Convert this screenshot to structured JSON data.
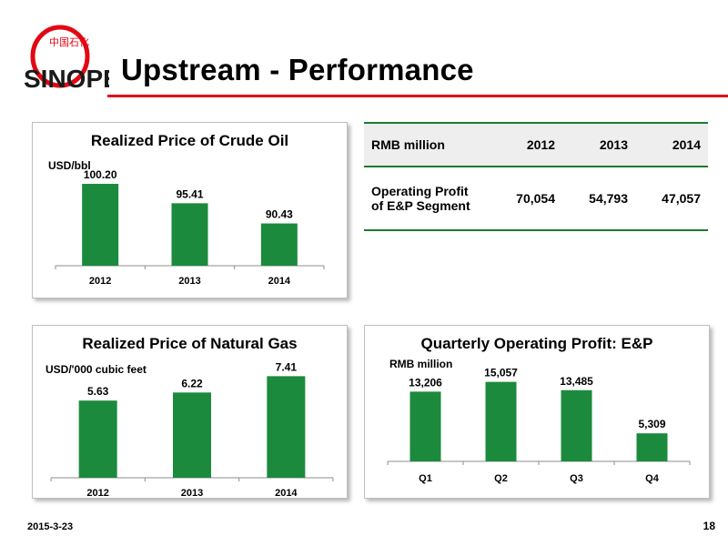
{
  "header": {
    "title": "Upstream - Performance",
    "logo_text": "SINOPEC 中国石化",
    "accent_color": "#e30613"
  },
  "footer": {
    "date": "2015-3-23",
    "page": "18"
  },
  "bar_color": "#1c8a3c",
  "table": {
    "headers": [
      "RMB million",
      "2012",
      "2013",
      "2014"
    ],
    "rows": [
      {
        "label_line1": "Operating Profit",
        "label_line2": "of E&P Segment",
        "values": [
          "70,054",
          "54,793",
          "47,057"
        ]
      }
    ]
  },
  "chart_data": [
    {
      "type": "bar",
      "title": "Realized Price of Crude Oil",
      "unit": "USD/bbl",
      "categories": [
        "2012",
        "2013",
        "2014"
      ],
      "values": [
        100.2,
        95.41,
        90.43
      ],
      "labels": [
        "100.20",
        "95.41",
        "90.43"
      ],
      "ylim": [
        80,
        102
      ]
    },
    {
      "type": "bar",
      "title": "Realized Price of Natural Gas",
      "unit": "USD/'000 cubic feet",
      "categories": [
        "2012",
        "2013",
        "2014"
      ],
      "values": [
        5.63,
        6.22,
        7.41
      ],
      "labels": [
        "5.63",
        "6.22",
        "7.41"
      ],
      "ylim": [
        0,
        7.9
      ]
    },
    {
      "type": "bar",
      "title": "Quarterly Operating Profit: E&P",
      "unit": "RMB million",
      "categories": [
        "Q1",
        "Q2",
        "Q3",
        "Q4"
      ],
      "values": [
        13206,
        15057,
        13485,
        5309
      ],
      "labels": [
        "13,206",
        "15,057",
        "13,485",
        "5,309"
      ],
      "ylim": [
        0,
        16200
      ]
    }
  ]
}
